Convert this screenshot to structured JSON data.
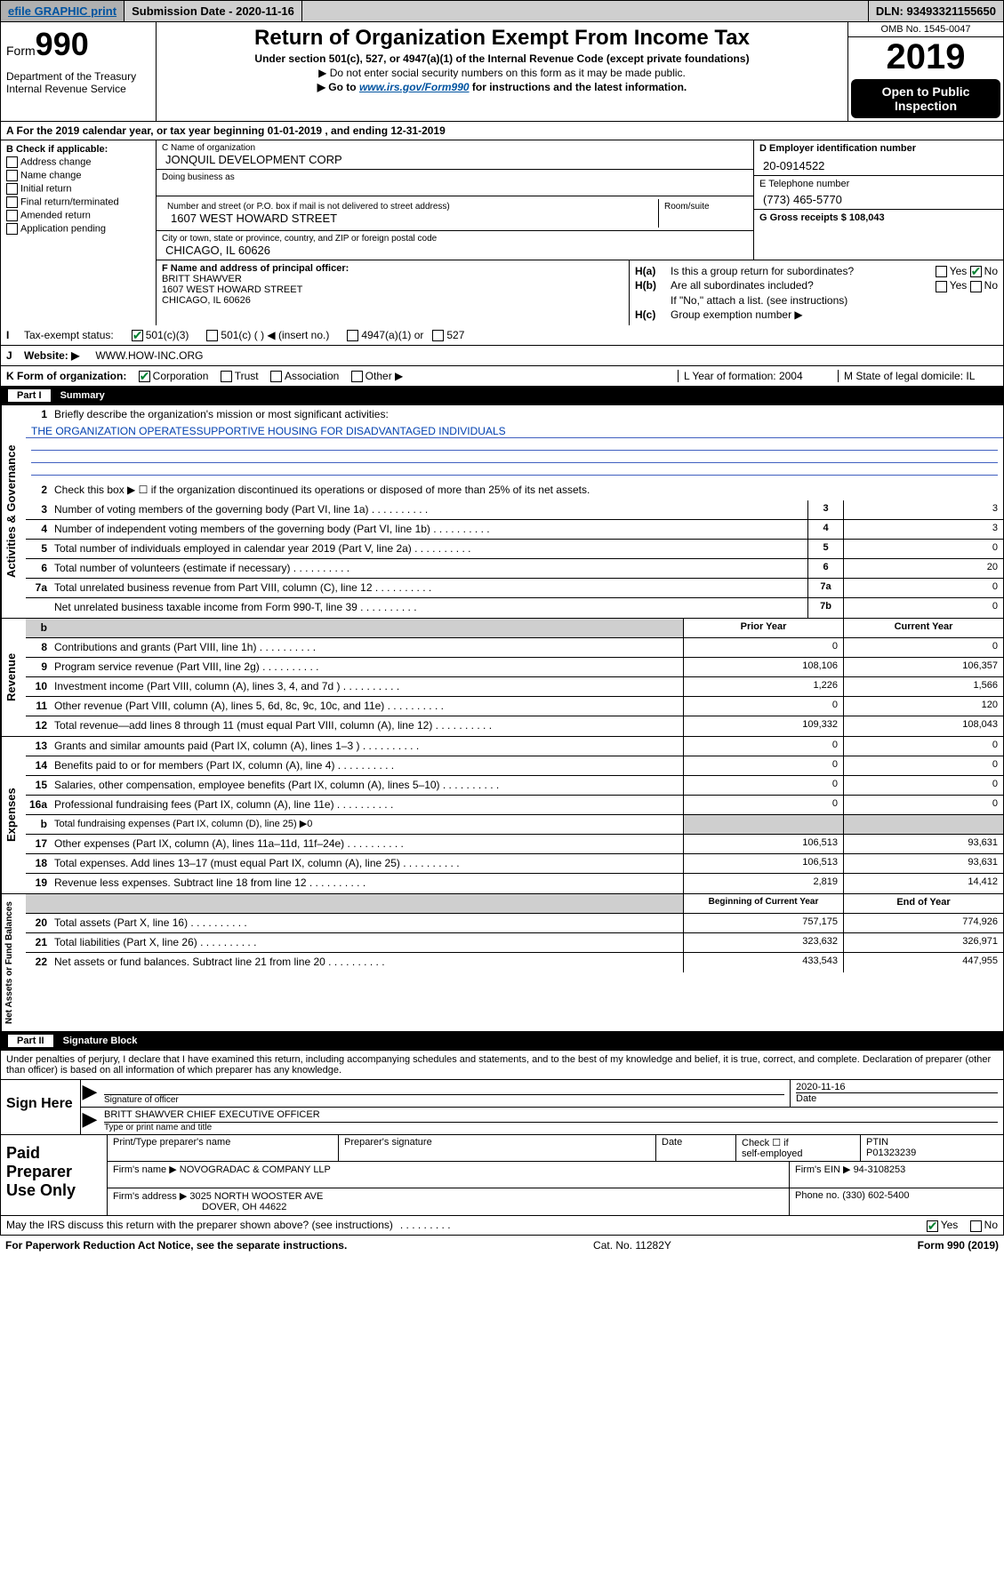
{
  "topbar": {
    "efile": "efile GRAPHIC print",
    "submission_label": "Submission Date - 2020-11-16",
    "dln_label": "DLN: 93493321155650"
  },
  "header": {
    "form_prefix": "Form",
    "form_number": "990",
    "dept": "Department of the Treasury\nInternal Revenue Service",
    "title": "Return of Organization Exempt From Income Tax",
    "sub1": "Under section 501(c), 527, or 4947(a)(1) of the Internal Revenue Code (except private foundations)",
    "sub2": "▶ Do not enter social security numbers on this form as it may be made public.",
    "sub3_pre": "▶ Go to ",
    "sub3_link": "www.irs.gov/Form990",
    "sub3_post": " for instructions and the latest information.",
    "omb": "OMB No. 1545-0047",
    "year": "2019",
    "open_public": "Open to Public Inspection"
  },
  "row_a": "A For the 2019 calendar year, or tax year beginning 01-01-2019   , and ending 12-31-2019",
  "col_b": {
    "title": "B Check if applicable:",
    "items": [
      "Address change",
      "Name change",
      "Initial return",
      "Final return/terminated",
      "Amended return",
      "Application pending"
    ]
  },
  "col_c": {
    "name_lbl": "C Name of organization",
    "name_val": "JONQUIL DEVELOPMENT CORP",
    "dba_lbl": "Doing business as",
    "dba_val": "",
    "addr_lbl": "Number and street (or P.O. box if mail is not delivered to street address)",
    "addr_val": "1607 WEST HOWARD STREET",
    "room_lbl": "Room/suite",
    "city_lbl": "City or town, state or province, country, and ZIP or foreign postal code",
    "city_val": "CHICAGO, IL  60626"
  },
  "col_d": {
    "ein_lbl": "D Employer identification number",
    "ein_val": "20-0914522",
    "phone_lbl": "E Telephone number",
    "phone_val": "(773) 465-5770",
    "gross_lbl": "G Gross receipts $ 108,043"
  },
  "col_f": {
    "lbl": "F  Name and address of principal officer:",
    "name": "BRITT SHAWVER",
    "addr": "1607 WEST HOWARD STREET\nCHICAGO, IL  60626"
  },
  "col_h": {
    "ha_k": "H(a)",
    "ha_t": "Is this a group return for subordinates?",
    "hb_k": "H(b)",
    "hb_t": "Are all subordinates included?",
    "hb_note": "If \"No,\" attach a list. (see instructions)",
    "hc_k": "H(c)",
    "hc_t": "Group exemption number ▶"
  },
  "row_i": {
    "lbl": "Tax-exempt status:",
    "opt1": "501(c)(3)",
    "opt2": "501(c) (  ) ◀ (insert no.)",
    "opt3": "4947(a)(1) or",
    "opt4": "527"
  },
  "row_j": {
    "lbl": "Website: ▶",
    "val": "WWW.HOW-INC.ORG"
  },
  "row_k": {
    "lbl": "K Form of organization:",
    "opts": [
      "Corporation",
      "Trust",
      "Association",
      "Other ▶"
    ],
    "l_lbl": "L Year of formation: 2004",
    "m_lbl": "M State of legal domicile: IL"
  },
  "part1": {
    "num": "Part I",
    "title": "Summary"
  },
  "governance": {
    "label": "Activities & Governance",
    "l1_num": "1",
    "l1": "Briefly describe the organization's mission or most significant activities:",
    "mission": "THE ORGANIZATION OPERATESSUPPORTIVE HOUSING FOR DISADVANTAGED INDIVIDUALS",
    "l2_num": "2",
    "l2": "Check this box ▶ ☐  if the organization discontinued its operations or disposed of more than 25% of its net assets.",
    "rows": [
      {
        "n": "3",
        "d": "Number of voting members of the governing body (Part VI, line 1a)",
        "k": "3",
        "v": "3"
      },
      {
        "n": "4",
        "d": "Number of independent voting members of the governing body (Part VI, line 1b)",
        "k": "4",
        "v": "3"
      },
      {
        "n": "5",
        "d": "Total number of individuals employed in calendar year 2019 (Part V, line 2a)",
        "k": "5",
        "v": "0"
      },
      {
        "n": "6",
        "d": "Total number of volunteers (estimate if necessary)",
        "k": "6",
        "v": "20"
      },
      {
        "n": "7a",
        "d": "Total unrelated business revenue from Part VIII, column (C), line 12",
        "k": "7a",
        "v": "0"
      },
      {
        "n": "",
        "d": "Net unrelated business taxable income from Form 990-T, line 39",
        "k": "7b",
        "v": "0"
      }
    ]
  },
  "revenue": {
    "label": "Revenue",
    "hdr_prior": "Prior Year",
    "hdr_curr": "Current Year",
    "rows": [
      {
        "n": "8",
        "d": "Contributions and grants (Part VIII, line 1h)",
        "p": "0",
        "c": "0"
      },
      {
        "n": "9",
        "d": "Program service revenue (Part VIII, line 2g)",
        "p": "108,106",
        "c": "106,357"
      },
      {
        "n": "10",
        "d": "Investment income (Part VIII, column (A), lines 3, 4, and 7d )",
        "p": "1,226",
        "c": "1,566"
      },
      {
        "n": "11",
        "d": "Other revenue (Part VIII, column (A), lines 5, 6d, 8c, 9c, 10c, and 11e)",
        "p": "0",
        "c": "120"
      },
      {
        "n": "12",
        "d": "Total revenue—add lines 8 through 11 (must equal Part VIII, column (A), line 12)",
        "p": "109,332",
        "c": "108,043"
      }
    ]
  },
  "expenses": {
    "label": "Expenses",
    "rows": [
      {
        "n": "13",
        "d": "Grants and similar amounts paid (Part IX, column (A), lines 1–3 )",
        "p": "0",
        "c": "0"
      },
      {
        "n": "14",
        "d": "Benefits paid to or for members (Part IX, column (A), line 4)",
        "p": "0",
        "c": "0"
      },
      {
        "n": "15",
        "d": "Salaries, other compensation, employee benefits (Part IX, column (A), lines 5–10)",
        "p": "0",
        "c": "0"
      },
      {
        "n": "16a",
        "d": "Professional fundraising fees (Part IX, column (A), line 11e)",
        "p": "0",
        "c": "0"
      }
    ],
    "l16b_n": "b",
    "l16b": "Total fundraising expenses (Part IX, column (D), line 25) ▶0",
    "rows2": [
      {
        "n": "17",
        "d": "Other expenses (Part IX, column (A), lines 11a–11d, 11f–24e)",
        "p": "106,513",
        "c": "93,631"
      },
      {
        "n": "18",
        "d": "Total expenses. Add lines 13–17 (must equal Part IX, column (A), line 25)",
        "p": "106,513",
        "c": "93,631"
      },
      {
        "n": "19",
        "d": "Revenue less expenses. Subtract line 18 from line 12",
        "p": "2,819",
        "c": "14,412"
      }
    ]
  },
  "netassets": {
    "label": "Net Assets or Fund Balances",
    "hdr_beg": "Beginning of Current Year",
    "hdr_end": "End of Year",
    "rows": [
      {
        "n": "20",
        "d": "Total assets (Part X, line 16)",
        "p": "757,175",
        "c": "774,926"
      },
      {
        "n": "21",
        "d": "Total liabilities (Part X, line 26)",
        "p": "323,632",
        "c": "326,971"
      },
      {
        "n": "22",
        "d": "Net assets or fund balances. Subtract line 21 from line 20",
        "p": "433,543",
        "c": "447,955"
      }
    ]
  },
  "part2": {
    "num": "Part II",
    "title": "Signature Block"
  },
  "perjury": "Under penalties of perjury, I declare that I have examined this return, including accompanying schedules and statements, and to the best of my knowledge and belief, it is true, correct, and complete. Declaration of preparer (other than officer) is based on all information of which preparer has any knowledge.",
  "sign": {
    "here": "Sign Here",
    "sig_lbl": "Signature of officer",
    "date_val": "2020-11-16",
    "date_lbl": "Date",
    "name_val": "BRITT SHAWVER  CHIEF EXECUTIVE OFFICER",
    "name_lbl": "Type or print name and title"
  },
  "prep": {
    "here": "Paid Preparer Use Only",
    "h1": "Print/Type preparer's name",
    "h2": "Preparer's signature",
    "h3": "Date",
    "h4_l1": "Check ☐ if",
    "h4_l2": "self-employed",
    "h5_lbl": "PTIN",
    "h5_val": "P01323239",
    "firm_name_lbl": "Firm's name    ▶",
    "firm_name_val": "NOVOGRADAC & COMPANY LLP",
    "firm_ein_lbl": "Firm's EIN ▶",
    "firm_ein_val": "94-3108253",
    "firm_addr_lbl": "Firm's address ▶",
    "firm_addr_val": "3025 NORTH WOOSTER AVE",
    "firm_city": "DOVER, OH  44622",
    "phone_lbl": "Phone no.",
    "phone_val": "(330) 602-5400"
  },
  "footer": {
    "discuss": "May the IRS discuss this return with the preparer shown above? (see instructions)",
    "paperwork": "For Paperwork Reduction Act Notice, see the separate instructions.",
    "cat": "Cat. No. 11282Y",
    "form": "Form 990 (2019)"
  },
  "yes": "Yes",
  "no": "No"
}
